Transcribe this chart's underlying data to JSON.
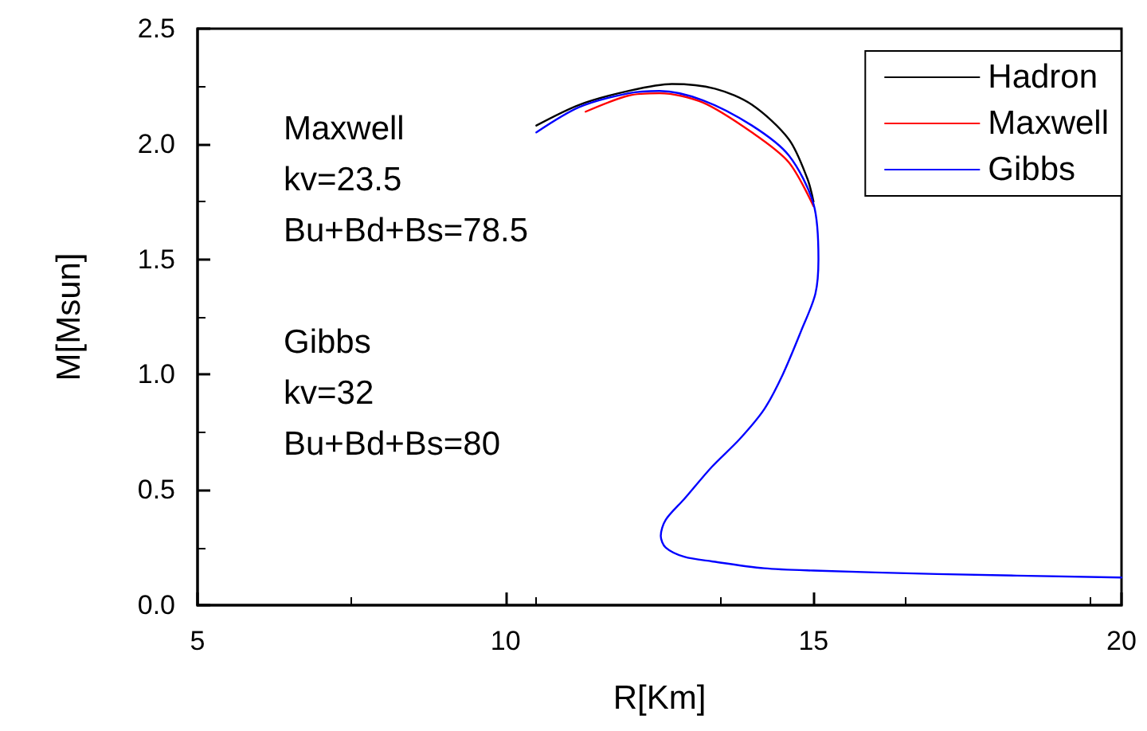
{
  "chart_data": {
    "type": "line",
    "xlabel": "R[Km]",
    "ylabel": "M[Msun]",
    "xlim": [
      5,
      20
    ],
    "xticks": [
      5,
      10,
      15,
      20
    ],
    "ylim": [
      0,
      2.5
    ],
    "yticks": [
      {
        "value": 0,
        "label": "0.0"
      },
      {
        "value": 0.5,
        "label": "0.5"
      },
      {
        "value": 1,
        "label": "1.0"
      },
      {
        "value": 1.5,
        "label": "1.5"
      },
      {
        "value": 2,
        "label": "2.0"
      },
      {
        "value": 2.5,
        "label": "2.5"
      }
    ],
    "legend": "top right",
    "grid": false,
    "marker": "none",
    "line_style": "solid",
    "annotations": [
      "Maxwell\nkv=23.5\nBu+Bd+Bs=78.5",
      "Gibbs\nkv=32\nBu+Bd+Bs=80"
    ],
    "series": [
      {
        "name": "Hadron",
        "color": "#000000",
        "x": [
          10.5,
          11.2,
          12.0,
          12.7,
          13.4,
          14.0,
          14.6,
          14.9,
          15.0
        ],
        "values": [
          2.08,
          2.17,
          2.23,
          2.26,
          2.24,
          2.17,
          2.02,
          1.85,
          1.75
        ]
      },
      {
        "name": "Maxwell",
        "color": "#ff0000",
        "x": [
          11.3,
          12.0,
          12.5,
          13.2,
          14.0,
          14.6,
          15.0
        ],
        "values": [
          2.14,
          2.21,
          2.22,
          2.18,
          2.05,
          1.92,
          1.73
        ]
      },
      {
        "name": "Gibbs",
        "color": "#0000ff",
        "x": [
          10.5,
          11.2,
          12.0,
          12.5,
          13.2,
          14.0,
          14.6,
          15.0,
          15.08,
          15.03,
          14.8,
          14.5,
          14.2,
          13.8,
          13.35,
          12.9,
          12.6,
          12.52,
          12.6,
          12.9,
          13.35,
          14.2,
          15.0,
          17.0,
          20.0
        ],
        "values": [
          2.05,
          2.16,
          2.22,
          2.23,
          2.19,
          2.08,
          1.95,
          1.74,
          1.5,
          1.35,
          1.19,
          1.0,
          0.85,
          0.72,
          0.6,
          0.46,
          0.37,
          0.3,
          0.25,
          0.21,
          0.19,
          0.16,
          0.15,
          0.135,
          0.12
        ]
      }
    ]
  }
}
